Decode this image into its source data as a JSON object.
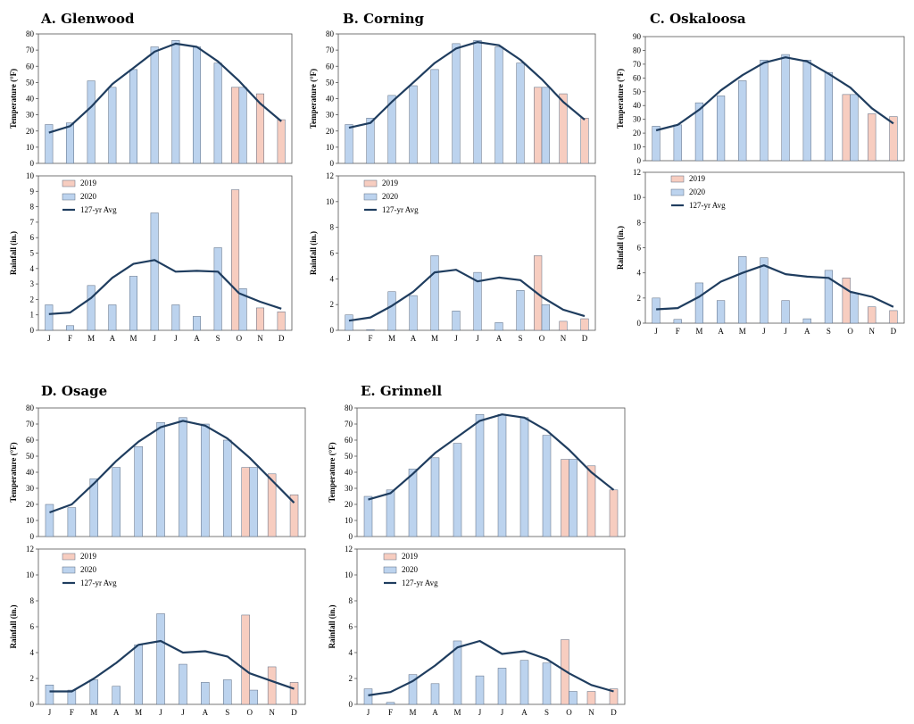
{
  "colors": {
    "bar_2019": "#f7cdc0",
    "bar_2020": "#bcd3ee",
    "bar_stroke": "#5a6a80",
    "avg_line": "#1f3d5f"
  },
  "months": [
    "J",
    "F",
    "M",
    "A",
    "M",
    "J",
    "J",
    "A",
    "S",
    "O",
    "N",
    "D"
  ],
  "legend": {
    "series_2019": "2019",
    "series_2020": "2020",
    "series_avg": "127-yr Avg"
  },
  "chart_data": [
    {
      "type": "bar",
      "title": "A. Glenwood",
      "temperature": {
        "ylabel": "Temperature (°F)",
        "ylim": [
          0,
          80
        ],
        "yticks": [
          0,
          10,
          20,
          30,
          40,
          50,
          60,
          70,
          80
        ],
        "series": [
          {
            "name": "2019",
            "values": [
              null,
              null,
              null,
              null,
              null,
              null,
              null,
              null,
              null,
              47,
              43,
              27
            ]
          },
          {
            "name": "2020",
            "values": [
              24,
              25,
              51,
              47,
              58,
              72,
              76,
              72,
              62,
              47,
              null,
              null
            ]
          },
          {
            "name": "127-yr Avg",
            "values": [
              19,
              23,
              35,
              49,
              59,
              69,
              74,
              72,
              63,
              51,
              37,
              26
            ]
          }
        ]
      },
      "rainfall": {
        "ylabel": "Rainfall (in.)",
        "ylim": [
          0,
          10
        ],
        "yticks": [
          0,
          1,
          2,
          3,
          4,
          5,
          6,
          7,
          8,
          9,
          10
        ],
        "series": [
          {
            "name": "2019",
            "values": [
              null,
              null,
              null,
              null,
              null,
              null,
              null,
              null,
              null,
              9.1,
              1.45,
              1.2
            ]
          },
          {
            "name": "2020",
            "values": [
              1.65,
              0.3,
              2.9,
              1.65,
              3.5,
              7.6,
              1.65,
              0.9,
              5.35,
              2.7,
              null,
              null
            ]
          },
          {
            "name": "127-yr Avg",
            "values": [
              1.05,
              1.15,
              2.1,
              3.4,
              4.3,
              4.55,
              3.8,
              3.85,
              3.8,
              2.4,
              1.85,
              1.4
            ]
          }
        ]
      }
    },
    {
      "type": "bar",
      "title": "B. Corning",
      "temperature": {
        "ylabel": "Temperature (°F)",
        "ylim": [
          0,
          80
        ],
        "yticks": [
          0,
          10,
          20,
          30,
          40,
          50,
          60,
          70,
          80
        ],
        "series": [
          {
            "name": "2019",
            "values": [
              null,
              null,
              null,
              null,
              null,
              null,
              null,
              null,
              null,
              47,
              43,
              28
            ]
          },
          {
            "name": "2020",
            "values": [
              24,
              28,
              42,
              48,
              58,
              74,
              76,
              72,
              62,
              47,
              null,
              null
            ]
          },
          {
            "name": "127-yr Avg",
            "values": [
              22,
              25,
              38,
              50,
              62,
              71,
              75,
              73,
              64,
              52,
              38,
              27
            ]
          }
        ]
      },
      "rainfall": {
        "ylabel": "Rainfall (in.)",
        "ylim": [
          0,
          12
        ],
        "yticks": [
          0,
          2,
          4,
          6,
          8,
          10,
          12
        ],
        "series": [
          {
            "name": "2019",
            "values": [
              null,
              null,
              null,
              null,
              null,
              null,
              null,
              null,
              null,
              5.8,
              0.7,
              0.9
            ]
          },
          {
            "name": "2020",
            "values": [
              1.2,
              0.05,
              3.0,
              2.7,
              5.8,
              1.5,
              4.5,
              0.6,
              3.1,
              2.0,
              null,
              null
            ]
          },
          {
            "name": "127-yr Avg",
            "values": [
              0.75,
              1.0,
              1.9,
              3.0,
              4.5,
              4.7,
              3.8,
              4.1,
              3.9,
              2.6,
              1.6,
              1.1
            ]
          }
        ]
      }
    },
    {
      "type": "bar",
      "title": "C. Oskaloosa",
      "temperature": {
        "ylabel": "Temperature (°F)",
        "ylim": [
          0,
          90
        ],
        "yticks": [
          0,
          10,
          20,
          30,
          40,
          50,
          60,
          70,
          80,
          90
        ],
        "series": [
          {
            "name": "2019",
            "values": [
              null,
              null,
              null,
              null,
              null,
              null,
              null,
              null,
              null,
              48,
              34,
              32
            ]
          },
          {
            "name": "2020",
            "values": [
              25,
              26,
              42,
              47,
              58,
              73,
              77,
              73,
              64,
              48,
              null,
              null
            ]
          },
          {
            "name": "127-yr Avg",
            "values": [
              22,
              26,
              37,
              51,
              62,
              71,
              75,
              72,
              63,
              53,
              38,
              27
            ]
          }
        ]
      },
      "rainfall": {
        "ylabel": "Rainfall (in.)",
        "ylim": [
          0,
          12
        ],
        "yticks": [
          0,
          2,
          4,
          6,
          8,
          10,
          12
        ],
        "series": [
          {
            "name": "2019",
            "values": [
              null,
              null,
              null,
              null,
              null,
              null,
              null,
              null,
              null,
              3.6,
              1.3,
              1.0
            ]
          },
          {
            "name": "2020",
            "values": [
              2.0,
              0.3,
              3.2,
              1.8,
              5.3,
              5.2,
              1.8,
              0.35,
              4.2,
              2.4,
              null,
              null
            ]
          },
          {
            "name": "127-yr Avg",
            "values": [
              1.1,
              1.2,
              2.1,
              3.3,
              4.0,
              4.6,
              3.9,
              3.7,
              3.6,
              2.5,
              2.1,
              1.3
            ]
          }
        ]
      }
    },
    {
      "type": "bar",
      "title": "D. Osage",
      "temperature": {
        "ylabel": "Temperature (°F)",
        "ylim": [
          0,
          80
        ],
        "yticks": [
          0,
          10,
          20,
          30,
          40,
          50,
          60,
          70,
          80
        ],
        "series": [
          {
            "name": "2019",
            "values": [
              null,
              null,
              null,
              null,
              null,
              null,
              null,
              null,
              null,
              43,
              39,
              26
            ]
          },
          {
            "name": "2020",
            "values": [
              20,
              18,
              36,
              43,
              56,
              71,
              74,
              70,
              60,
              43,
              null,
              null
            ]
          },
          {
            "name": "127-yr Avg",
            "values": [
              15,
              20,
              33,
              47,
              59,
              68,
              72,
              69,
              61,
              49,
              35,
              21
            ]
          }
        ]
      },
      "rainfall": {
        "ylabel": "Rainfall (in.)",
        "ylim": [
          0,
          12
        ],
        "yticks": [
          0,
          2,
          4,
          6,
          8,
          10,
          12
        ],
        "series": [
          {
            "name": "2019",
            "values": [
              null,
              null,
              null,
              null,
              null,
              null,
              null,
              null,
              null,
              6.9,
              2.9,
              1.7
            ]
          },
          {
            "name": "2020",
            "values": [
              1.5,
              1.1,
              1.9,
              1.4,
              4.6,
              7.0,
              3.1,
              1.7,
              1.9,
              1.1,
              null,
              null
            ]
          },
          {
            "name": "127-yr Avg",
            "values": [
              1.0,
              1.0,
              2.0,
              3.2,
              4.6,
              4.9,
              4.0,
              4.1,
              3.7,
              2.4,
              1.8,
              1.2
            ]
          }
        ]
      }
    },
    {
      "type": "bar",
      "title": "E. Grinnell",
      "temperature": {
        "ylabel": "Temperature (°F)",
        "ylim": [
          0,
          80
        ],
        "yticks": [
          0,
          10,
          20,
          30,
          40,
          50,
          60,
          70,
          80
        ],
        "series": [
          {
            "name": "2019",
            "values": [
              null,
              null,
              null,
              null,
              null,
              null,
              null,
              null,
              null,
              48,
              44,
              29
            ]
          },
          {
            "name": "2020",
            "values": [
              25,
              29,
              42,
              49,
              58,
              76,
              76,
              74,
              63,
              48,
              null,
              null
            ]
          },
          {
            "name": "127-yr Avg",
            "values": [
              23,
              27,
              39,
              52,
              62,
              72,
              76,
              74,
              66,
              54,
              40,
              29
            ]
          }
        ]
      },
      "rainfall": {
        "ylabel": "Rainfall (in.)",
        "ylim": [
          0,
          12
        ],
        "yticks": [
          0,
          2,
          4,
          6,
          8,
          10,
          12
        ],
        "series": [
          {
            "name": "2019",
            "values": [
              null,
              null,
              null,
              null,
              null,
              null,
              null,
              null,
              null,
              5.0,
              1.0,
              1.2
            ]
          },
          {
            "name": "2020",
            "values": [
              1.2,
              0.15,
              2.3,
              1.6,
              4.9,
              2.2,
              2.8,
              3.4,
              3.2,
              1.0,
              null,
              null
            ]
          },
          {
            "name": "127-yr Avg",
            "values": [
              0.7,
              0.95,
              1.8,
              3.0,
              4.4,
              4.9,
              3.9,
              4.1,
              3.5,
              2.4,
              1.5,
              1.0
            ]
          }
        ]
      }
    }
  ]
}
